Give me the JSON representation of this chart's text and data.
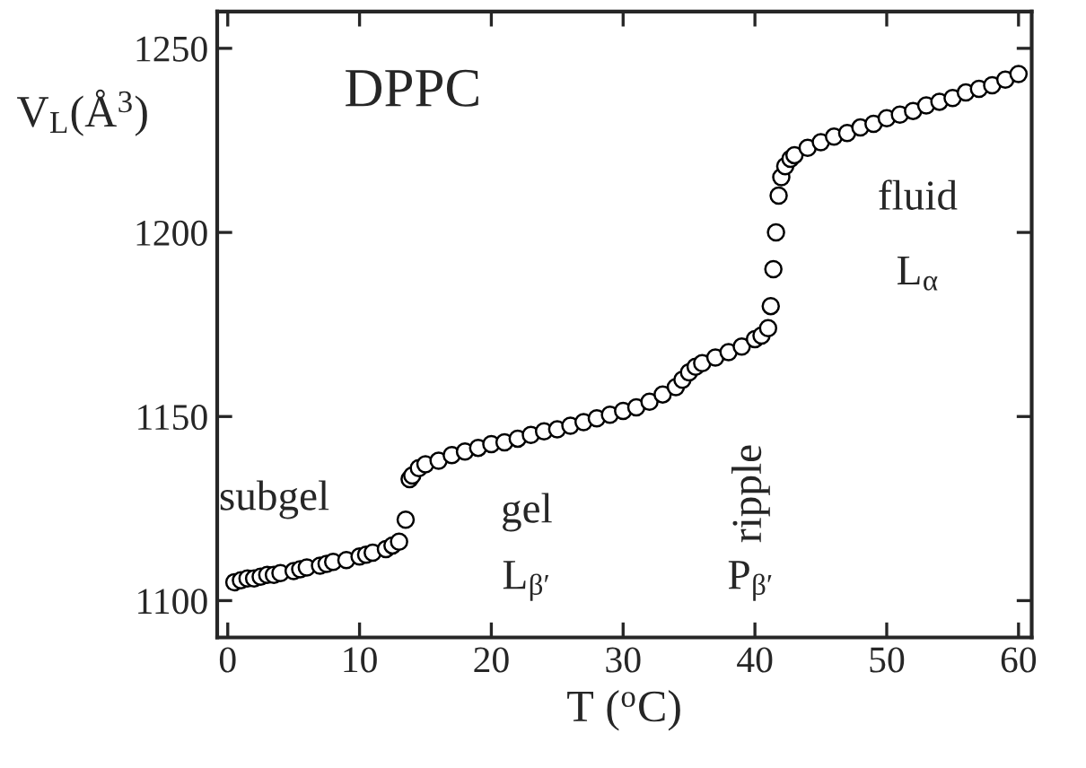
{
  "chart_data": {
    "type": "scatter",
    "xlabel": "T ($^{o}$C)",
    "ylabel": "V$_{L}$(Å$^{3}$)",
    "xlim": [
      -0.8,
      61
    ],
    "ylim": [
      1090,
      1260
    ],
    "xticks": [
      0,
      10,
      20,
      30,
      40,
      50,
      60
    ],
    "yticks": [
      1100,
      1150,
      1200,
      1250
    ],
    "marker": "circle",
    "grid": false,
    "legend": false,
    "series": [
      {
        "color": "#000000",
        "x": [
          0.5,
          1,
          1.5,
          2,
          2.5,
          3,
          3.5,
          4,
          5,
          5.5,
          6,
          7,
          7.5,
          8,
          9,
          10,
          10.5,
          11,
          12,
          12.5,
          13,
          13.5,
          13.8,
          14,
          14.5,
          15,
          16,
          17,
          18,
          19,
          20,
          21,
          22,
          23,
          24,
          25,
          26,
          27,
          28,
          29,
          30,
          31,
          32,
          33,
          34,
          34.5,
          35,
          35.5,
          36,
          37,
          38,
          39,
          40,
          40.5,
          41,
          41.2,
          41.4,
          41.6,
          41.8,
          42,
          42.3,
          42.7,
          43,
          44,
          45,
          46,
          47,
          48,
          49,
          50,
          51,
          52,
          53,
          54,
          55,
          56,
          57,
          58,
          59,
          60
        ],
        "values": [
          1105,
          1105.5,
          1106,
          1106,
          1106.5,
          1107,
          1107,
          1107.5,
          1108,
          1108.5,
          1109,
          1109.5,
          1110,
          1110.5,
          1111,
          1112,
          1112.5,
          1113,
          1114,
          1115,
          1116,
          1122,
          1133,
          1134,
          1136,
          1137,
          1138,
          1139.5,
          1140.5,
          1141.5,
          1142.5,
          1143,
          1144,
          1145,
          1146,
          1146.5,
          1147.5,
          1148.5,
          1149.5,
          1150.5,
          1151.5,
          1152.5,
          1154,
          1156,
          1158,
          1160,
          1162,
          1163.5,
          1164.5,
          1166,
          1167.5,
          1169,
          1171,
          1172,
          1174,
          1180,
          1190,
          1200,
          1210,
          1215,
          1218,
          1220,
          1221,
          1223,
          1224.5,
          1226,
          1227,
          1228.5,
          1229.5,
          1231,
          1232,
          1233,
          1234.5,
          1235.5,
          1236.5,
          1238,
          1239,
          1240,
          1241.5,
          1243
        ]
      }
    ],
    "annotations": [
      "DPPC",
      "subgel",
      "gel",
      "L$_{β′}$",
      "ripple",
      "P$_{β′}$",
      "fluid",
      "L$_{α}$"
    ]
  }
}
